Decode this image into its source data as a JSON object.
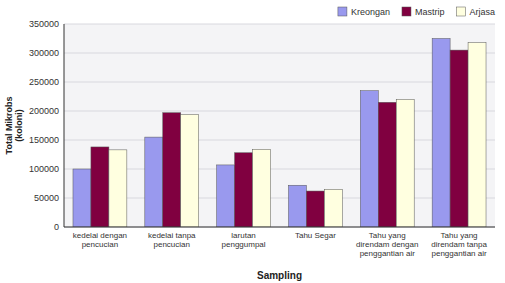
{
  "chart_data": {
    "type": "bar",
    "categories": [
      "kedelai dengan\npencucian",
      "kedelai tanpa\npencucian",
      "larutan\npenggumpal",
      "Tahu Segar",
      "Tahu yang\ndirendam dengan\npenggantian air",
      "Tahu yang\ndirendam tanpa\npenggantian air"
    ],
    "series": [
      {
        "name": "Kreongan",
        "color": "#9999ee",
        "values": [
          100000,
          155000,
          107000,
          72000,
          235000,
          325000
        ]
      },
      {
        "name": "Mastrip",
        "color": "#800040",
        "values": [
          138000,
          197000,
          128000,
          62000,
          215000,
          305000
        ]
      },
      {
        "name": "Arjasa",
        "color": "#ffffe0",
        "values": [
          133000,
          194000,
          134000,
          65000,
          220000,
          318000
        ]
      }
    ],
    "ylabel": "Total Mikrobs\n(koloni)",
    "xlabel": "Sampling",
    "ylim": [
      0,
      350000
    ],
    "yticks": [
      0,
      50000,
      100000,
      150000,
      200000,
      250000,
      300000,
      350000
    ],
    "grid": true,
    "legend": "upper right"
  }
}
